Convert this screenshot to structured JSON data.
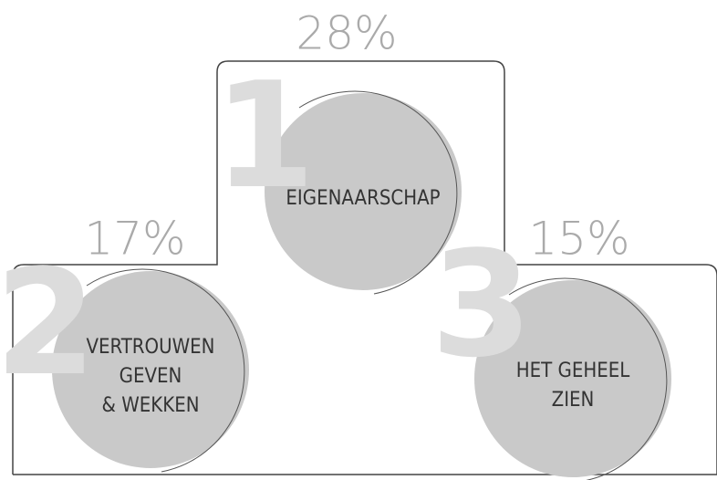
{
  "nodes": [
    {
      "rank": "1",
      "percent": "28%",
      "lines": [
        "EIGENAARSCHAP"
      ]
    },
    {
      "rank": "2",
      "percent": "17%",
      "lines": [
        "VERTROUWEN",
        "GEVEN",
        "& WEKKEN"
      ]
    },
    {
      "rank": "3",
      "percent": "15%",
      "lines": [
        "HET GEHEEL",
        "ZIEN"
      ]
    }
  ]
}
